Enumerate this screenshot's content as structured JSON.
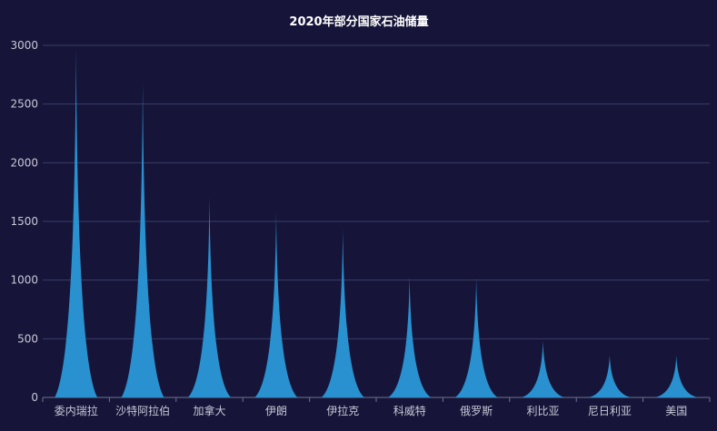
{
  "chart_data": {
    "type": "bar",
    "title": "2020年部分国家石油储量",
    "categories": [
      "委内瑞拉",
      "沙特阿拉伯",
      "加拿大",
      "伊朗",
      "伊拉克",
      "科威特",
      "俄罗斯",
      "利比亚",
      "尼日利亚",
      "美国"
    ],
    "values": [
      2970,
      2680,
      1710,
      1570,
      1430,
      1030,
      1020,
      480,
      360,
      360
    ],
    "ylim": [
      0,
      3000
    ],
    "yticks": [
      0,
      500,
      1000,
      1500,
      2000,
      2500,
      3000
    ],
    "grid": true,
    "colors": {
      "background": "#161539",
      "bar": "#2991cf",
      "grid": "#3a3d66",
      "text": "#c8c8d6"
    }
  }
}
